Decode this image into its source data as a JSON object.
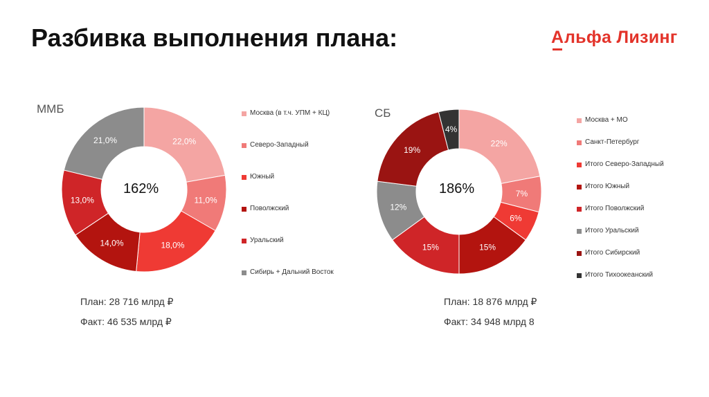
{
  "header": {
    "title": "Разбивка выполнения плана:",
    "logo_mark": "А",
    "logo_text": "льфа Лизинг"
  },
  "colors": {
    "brand": "#e3332a"
  },
  "chart_data": [
    {
      "type": "pie",
      "title": "ММБ",
      "center_label": "162%",
      "labels": [
        "22,0%",
        "11,0%",
        "18,0%",
        "14,0%",
        "13,0%",
        "21,0%"
      ],
      "slices": [
        {
          "name": "Москва (в т.ч. УПМ + КЦ)",
          "value": 22.0,
          "color": "#f4a5a3"
        },
        {
          "name": "Северо-Западный",
          "value": 11.0,
          "color": "#f07a78"
        },
        {
          "name": "Южный",
          "value": 18.0,
          "color": "#ef3a34"
        },
        {
          "name": "Поволжский",
          "value": 14.0,
          "color": "#b3140f"
        },
        {
          "name": "Уральский",
          "value": 13.0,
          "color": "#cf2528"
        },
        {
          "name": "Сибирь + Дальний Восток",
          "value": 21.0,
          "color": "#8c8c8c"
        }
      ],
      "plan": "План: 28 716 млрд ₽",
      "fact": "Факт: 46 535 млрд ₽"
    },
    {
      "type": "pie",
      "title": "СБ",
      "center_label": "186%",
      "labels": [
        "22%",
        "7%",
        "6%",
        "15%",
        "15%",
        "12%",
        "19%",
        "4%"
      ],
      "slices": [
        {
          "name": "Москва + МО",
          "value": 22,
          "color": "#f4a5a3"
        },
        {
          "name": "Санкт-Петербург",
          "value": 7,
          "color": "#f07a78"
        },
        {
          "name": "Итого Северо-Западный",
          "value": 6,
          "color": "#ef3a34"
        },
        {
          "name": "Итого Южный",
          "value": 15,
          "color": "#b3140f"
        },
        {
          "name": "Итого Поволжский",
          "value": 15,
          "color": "#cf2528"
        },
        {
          "name": "Итого Уральский",
          "value": 12,
          "color": "#8c8c8c"
        },
        {
          "name": "Итого Сибирский",
          "value": 19,
          "color": "#9a1412"
        },
        {
          "name": "Итого Тихоокеанский",
          "value": 4,
          "color": "#333333"
        }
      ],
      "plan": "План: 18 876 млрд ₽",
      "fact": "Факт: 34 948 млрд 8"
    }
  ]
}
